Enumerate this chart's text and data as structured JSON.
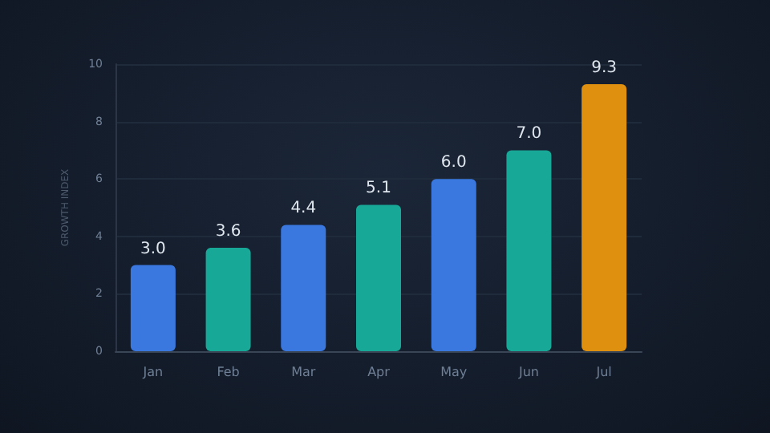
{
  "chart_data": {
    "type": "bar",
    "ylabel": "GROWTH INDEX",
    "categories": [
      "Jan",
      "Feb",
      "Mar",
      "Apr",
      "May",
      "Jun",
      "Jul"
    ],
    "values": [
      3.0,
      3.6,
      4.4,
      5.1,
      6.0,
      7.0,
      9.3
    ],
    "colors": [
      "#3a78e0",
      "#17a898",
      "#3a78e0",
      "#17a898",
      "#3a78e0",
      "#17a898",
      "#e0900f"
    ],
    "value_labels": [
      "3.0",
      "3.6",
      "4.4",
      "5.1",
      "6.0",
      "7.0",
      "9.3"
    ],
    "ylim": [
      0,
      10
    ],
    "yticks": [
      0,
      2,
      4,
      6,
      8,
      10
    ],
    "grid": "y"
  }
}
